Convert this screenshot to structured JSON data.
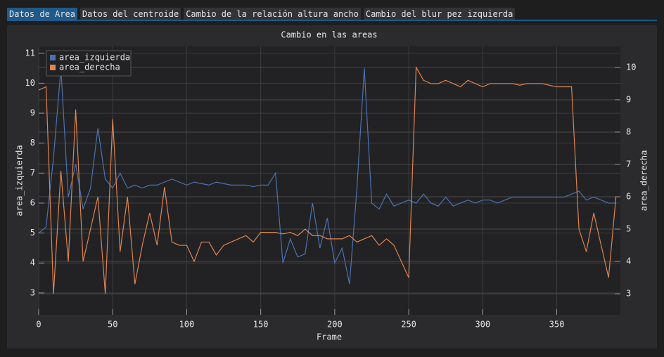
{
  "tabs": [
    "Datos de Area",
    "Datos del centroide",
    "Cambio de la relación altura ancho",
    "Cambio del blur pez izquierda"
  ],
  "active_tab": 0,
  "chart_data": {
    "type": "line",
    "title": "Cambio en las areas",
    "x_label": "Frame",
    "y_label": "area_izquierda",
    "y2_label": "area_derecha",
    "x": [
      0,
      5,
      10,
      15,
      20,
      25,
      30,
      35,
      40,
      45,
      50,
      55,
      60,
      65,
      70,
      75,
      80,
      85,
      90,
      95,
      100,
      105,
      110,
      115,
      120,
      125,
      130,
      135,
      140,
      145,
      150,
      155,
      160,
      165,
      170,
      175,
      180,
      185,
      190,
      195,
      200,
      205,
      210,
      215,
      220,
      225,
      230,
      235,
      240,
      245,
      250,
      255,
      260,
      265,
      270,
      275,
      280,
      285,
      290,
      295,
      300,
      305,
      310,
      315,
      320,
      325,
      330,
      335,
      340,
      345,
      350,
      355,
      360,
      365,
      370,
      375,
      380,
      385,
      390
    ],
    "series": [
      {
        "name": "area_izquierda",
        "color": "#4c72b0",
        "axis": "y",
        "values": [
          5.0,
          5.2,
          7.5,
          10.5,
          6.2,
          7.3,
          5.8,
          6.5,
          8.5,
          6.8,
          6.5,
          7.0,
          6.5,
          6.6,
          6.5,
          6.6,
          6.6,
          6.7,
          6.8,
          6.7,
          6.6,
          6.7,
          6.65,
          6.6,
          6.7,
          6.65,
          6.6,
          6.6,
          6.6,
          6.55,
          6.6,
          6.6,
          7.0,
          4.0,
          4.8,
          4.2,
          4.3,
          6.0,
          4.5,
          5.5,
          4.0,
          4.5,
          3.3,
          6.5,
          10.5,
          6.0,
          5.8,
          6.3,
          5.9,
          6.0,
          6.1,
          6.0,
          6.3,
          6.0,
          5.9,
          6.2,
          5.9,
          6.0,
          6.1,
          6.0,
          6.1,
          6.1,
          6.0,
          6.1,
          6.2,
          6.2,
          6.2,
          6.2,
          6.2,
          6.2,
          6.2,
          6.2,
          6.3,
          6.4,
          6.1,
          6.2,
          6.1,
          6.0,
          6.0
        ]
      },
      {
        "name": "area_derecha",
        "color": "#dd8452",
        "axis": "y2",
        "values": [
          9.3,
          9.4,
          3.0,
          6.8,
          4.0,
          8.7,
          4.0,
          5.0,
          6.0,
          3.0,
          8.4,
          4.3,
          6.0,
          3.3,
          4.5,
          5.5,
          4.5,
          6.3,
          4.6,
          4.5,
          4.5,
          4.0,
          4.6,
          4.6,
          4.2,
          4.5,
          4.6,
          4.7,
          4.8,
          4.6,
          4.9,
          4.9,
          4.9,
          4.85,
          4.9,
          4.8,
          5.0,
          4.8,
          4.8,
          4.7,
          4.7,
          4.7,
          4.8,
          4.6,
          4.7,
          4.8,
          4.5,
          4.7,
          4.5,
          4.0,
          3.5,
          10.0,
          9.6,
          9.5,
          9.5,
          9.6,
          9.5,
          9.4,
          9.6,
          9.5,
          9.4,
          9.5,
          9.5,
          9.5,
          9.5,
          9.45,
          9.5,
          9.5,
          9.5,
          9.45,
          9.4,
          9.4,
          9.4,
          5.0,
          4.3,
          5.5,
          4.5,
          3.5,
          6.0
        ]
      }
    ],
    "xlim": [
      0,
      393
    ],
    "xticks": [
      0,
      50,
      100,
      150,
      200,
      250,
      300,
      350
    ],
    "ylim": [
      2.27,
      11.23
    ],
    "yticks": [
      3,
      4,
      5,
      6,
      7,
      8,
      9,
      10,
      11
    ],
    "y2lim": [
      2.35,
      10.65
    ],
    "y2ticks": [
      3,
      4,
      5,
      6,
      7,
      8,
      9,
      10
    ],
    "grid": true,
    "legend": "northwest"
  }
}
